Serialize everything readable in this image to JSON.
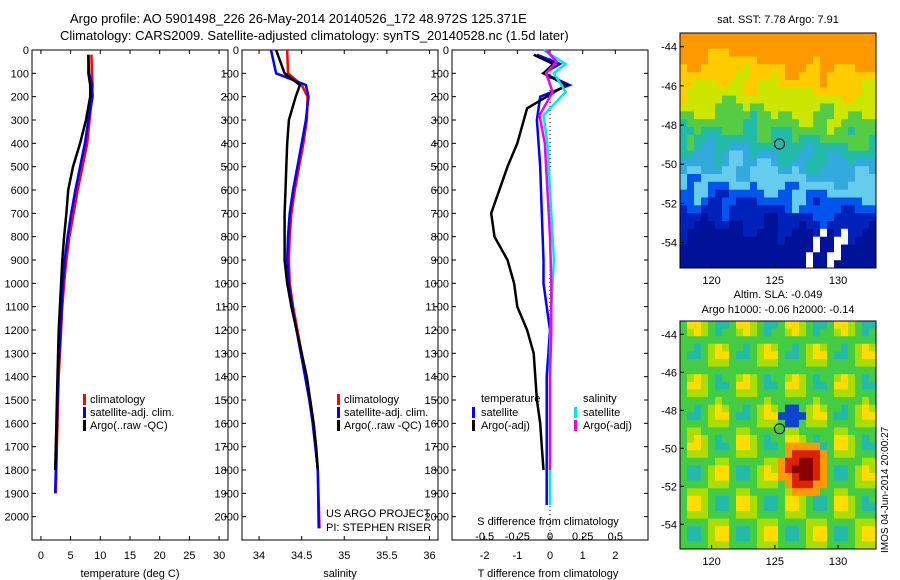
{
  "header": {
    "title": "Argo profile: AO 5901498_226 26-May-2014 20140526_172 48.972S 125.371E",
    "subtitle": "Climatology: CARS2009. Satellite-adjusted climatology: synTS_20140528.nc (1.5d later)"
  },
  "credits": {
    "line1": "US ARGO PROJECT",
    "line2": "PI: STEPHEN RISER"
  },
  "colors": {
    "climatology": "#ff0000",
    "satellite": "#0000ff",
    "argo": "#000000",
    "cyan": "#00e5ee",
    "magenta": "#ee00ee"
  },
  "chart_data": [
    {
      "type": "line",
      "name": "temperature-profile",
      "xlabel": "temperature (deg C)",
      "ylabel": "",
      "xlim": [
        -1.5,
        31.5
      ],
      "ylim": [
        2100,
        0
      ],
      "xticks": [
        0,
        5,
        10,
        15,
        20,
        25,
        30
      ],
      "yticks": [
        0,
        100,
        200,
        300,
        400,
        500,
        600,
        700,
        800,
        900,
        1000,
        1100,
        1200,
        1300,
        1400,
        1500,
        1600,
        1700,
        1800,
        1900,
        2000
      ],
      "legend": {
        "position": "bottom-right",
        "entries": [
          "climatology",
          "satellite-adj. clim.",
          "Argo(..raw -QC)"
        ]
      },
      "series": [
        {
          "name": "climatology",
          "color": "#ff0000",
          "x": [
            8.5,
            8.6,
            8.7,
            8.6,
            8.2,
            7.8,
            7.0,
            6.2,
            5.5,
            4.8,
            4.3,
            3.9,
            3.6,
            3.4,
            3.2,
            3.0,
            2.9,
            2.8,
            2.7,
            2.6,
            2.5
          ],
          "y": [
            20,
            100,
            150,
            200,
            300,
            400,
            500,
            600,
            700,
            800,
            900,
            1000,
            1100,
            1200,
            1300,
            1400,
            1500,
            1600,
            1700,
            1800,
            1900
          ]
        },
        {
          "name": "satellite-adj. clim.",
          "color": "#0000ff",
          "x": [
            8.0,
            8.1,
            8.6,
            8.7,
            8.0,
            7.4,
            6.6,
            5.8,
            5.1,
            4.5,
            4.0,
            3.7,
            3.5,
            3.3,
            3.1,
            2.9,
            2.8,
            2.7,
            2.6,
            2.5,
            2.4
          ],
          "y": [
            20,
            100,
            150,
            200,
            300,
            400,
            500,
            600,
            700,
            800,
            900,
            1000,
            1100,
            1200,
            1300,
            1400,
            1500,
            1600,
            1700,
            1800,
            1900
          ]
        },
        {
          "name": "Argo(..raw -QC)",
          "color": "#000000",
          "x": [
            8.0,
            8.0,
            8.3,
            8.3,
            7.6,
            6.6,
            5.4,
            4.6,
            4.3,
            3.9,
            3.6,
            3.4,
            3.2,
            3.0,
            2.9,
            2.8,
            2.7,
            2.6,
            2.5,
            2.4
          ],
          "y": [
            20,
            100,
            150,
            200,
            300,
            400,
            500,
            600,
            700,
            800,
            900,
            1000,
            1100,
            1200,
            1300,
            1400,
            1500,
            1600,
            1700,
            1800
          ]
        }
      ]
    },
    {
      "type": "line",
      "name": "salinity-profile",
      "xlabel": "salinity",
      "ylabel": "",
      "xlim": [
        33.8,
        36.1
      ],
      "ylim": [
        2100,
        0
      ],
      "xticks": [
        34,
        34.5,
        35,
        35.5,
        36
      ],
      "legend": {
        "position": "bottom-right",
        "entries": [
          "climatology",
          "satellite-adj. clim.",
          "Argo(..raw -QC)"
        ]
      },
      "series": [
        {
          "name": "climatology",
          "color": "#ff0000",
          "x": [
            34.33,
            34.34,
            34.5,
            34.57,
            34.56,
            34.52,
            34.47,
            34.42,
            34.38,
            34.36,
            34.35,
            34.36,
            34.4,
            34.45,
            34.5,
            34.55,
            34.6,
            34.64,
            34.67,
            34.69,
            34.71
          ],
          "y": [
            0,
            100,
            150,
            200,
            300,
            400,
            500,
            600,
            700,
            800,
            900,
            1000,
            1100,
            1200,
            1300,
            1400,
            1500,
            1600,
            1700,
            1800,
            2050
          ]
        },
        {
          "name": "satellite-adj. clim.",
          "color": "#0000ff",
          "x": [
            34.14,
            34.2,
            34.55,
            34.58,
            34.55,
            34.5,
            34.45,
            34.4,
            34.36,
            34.34,
            34.33,
            34.35,
            34.39,
            34.44,
            34.49,
            34.54,
            34.59,
            34.63,
            34.66,
            34.69,
            34.7
          ],
          "y": [
            0,
            100,
            150,
            200,
            300,
            400,
            500,
            600,
            700,
            800,
            900,
            1000,
            1100,
            1200,
            1300,
            1400,
            1500,
            1600,
            1700,
            1800,
            2050
          ]
        },
        {
          "name": "Argo(..raw -QC)",
          "color": "#000000",
          "x": [
            34.2,
            34.3,
            34.48,
            34.43,
            34.35,
            34.33,
            34.32,
            34.31,
            34.3,
            34.3,
            34.3,
            34.33,
            34.38,
            34.44,
            34.5,
            34.56,
            34.6,
            34.64,
            34.67,
            34.69
          ],
          "y": [
            0,
            100,
            150,
            200,
            300,
            400,
            500,
            600,
            700,
            800,
            900,
            1000,
            1100,
            1200,
            1300,
            1400,
            1500,
            1600,
            1700,
            1800
          ]
        }
      ]
    },
    {
      "type": "line",
      "name": "difference-profile",
      "xlabel": "T difference from climatology",
      "x2label": "S difference from climatology",
      "ylabel": "",
      "xlim": [
        -3,
        3
      ],
      "x2lim": [
        -0.75,
        0.75
      ],
      "ylim": [
        2100,
        0
      ],
      "xticks": [
        -2,
        -1,
        0,
        1,
        2
      ],
      "x2ticks": [
        -0.5,
        -0.25,
        0,
        0.25,
        0.5
      ],
      "x2ticklabels": [
        "-0.5",
        "-0.25",
        "0",
        "0.25",
        "0.5"
      ],
      "legend": {
        "position": "bottom",
        "temperature_heading": "temperature",
        "salinity_heading": "salinity",
        "temperature_entries": [
          "satellite",
          "Argo(-adj)"
        ],
        "salinity_entries": [
          "satellite",
          "Argo(-adj)"
        ]
      },
      "series": [
        {
          "name": "T satellite",
          "color": "#0000ff",
          "x": [
            -0.4,
            0.3,
            -0.2,
            0.6,
            -0.3,
            -0.4,
            -0.3,
            -0.25,
            -0.2,
            -0.2,
            -0.1,
            0,
            -0.05,
            -0.1,
            -0.1,
            -0.1,
            -0.1,
            -0.1,
            -0.1,
            -0.1
          ],
          "y": [
            20,
            60,
            100,
            150,
            200,
            300,
            500,
            700,
            900,
            1000,
            1100,
            1200,
            1300,
            1400,
            1500,
            1600,
            1700,
            1800,
            1900,
            1950
          ]
        },
        {
          "name": "T Argo(-adj)",
          "color": "#000000",
          "x": [
            -0.5,
            0.1,
            -0.2,
            0.5,
            -0.7,
            -1.0,
            -1.3,
            -1.8,
            -1.7,
            -1.3,
            -1.1,
            -1.0,
            -0.7,
            -0.5,
            -0.45,
            -0.4,
            -0.3,
            -0.25,
            -0.2
          ],
          "y": [
            20,
            60,
            100,
            150,
            250,
            400,
            500,
            700,
            800,
            900,
            1000,
            1100,
            1200,
            1300,
            1400,
            1500,
            1600,
            1700,
            1800
          ]
        },
        {
          "name": "S satellite",
          "color": "#00e5ee",
          "x": [
            -0.05,
            0.12,
            0.03,
            0.12,
            -0.05,
            -0.02,
            0.0,
            0.02,
            0.03,
            0.01,
            0.0,
            0.0,
            0.0,
            0.0,
            0.0
          ],
          "y": [
            0,
            60,
            100,
            180,
            280,
            400,
            600,
            800,
            900,
            1100,
            1300,
            1500,
            1700,
            1900,
            1950
          ]
        },
        {
          "name": "S Argo(-adj)",
          "color": "#ee00ee",
          "x": [
            -0.03,
            0.05,
            -0.03,
            0.02,
            -0.08,
            -0.04,
            -0.02,
            0.0,
            0.01,
            0.01,
            0.0,
            0.0,
            0.0,
            0.0
          ],
          "y": [
            0,
            50,
            100,
            180,
            280,
            400,
            600,
            800,
            1000,
            1200,
            1400,
            1600,
            1700,
            1800
          ]
        }
      ]
    },
    {
      "type": "heatmap",
      "name": "sst-map",
      "title": "sat. SST: 7.78 Argo: 7.91",
      "xlim": [
        117.5,
        133
      ],
      "ylim": [
        -55.3,
        -43.3
      ],
      "xticks": [
        120,
        125,
        130
      ],
      "yticks": [
        -44,
        -46,
        -48,
        -50,
        -52,
        -54
      ],
      "marker": {
        "lon": 125.37,
        "lat": -48.97
      }
    },
    {
      "type": "heatmap",
      "name": "sla-map",
      "title_line1": "Altim. SLA: -0.049",
      "title_line2": "Argo h1000: -0.06 h2000: -0.14",
      "side_label": "IMOS 04-Jun-2014 20:00:27",
      "xlim": [
        117.5,
        133
      ],
      "ylim": [
        -55.3,
        -43.3
      ],
      "xticks": [
        120,
        125,
        130
      ],
      "yticks": [
        -44,
        -46,
        -48,
        -50,
        -52,
        -54
      ],
      "marker": {
        "lon": 125.37,
        "lat": -48.97
      }
    }
  ]
}
